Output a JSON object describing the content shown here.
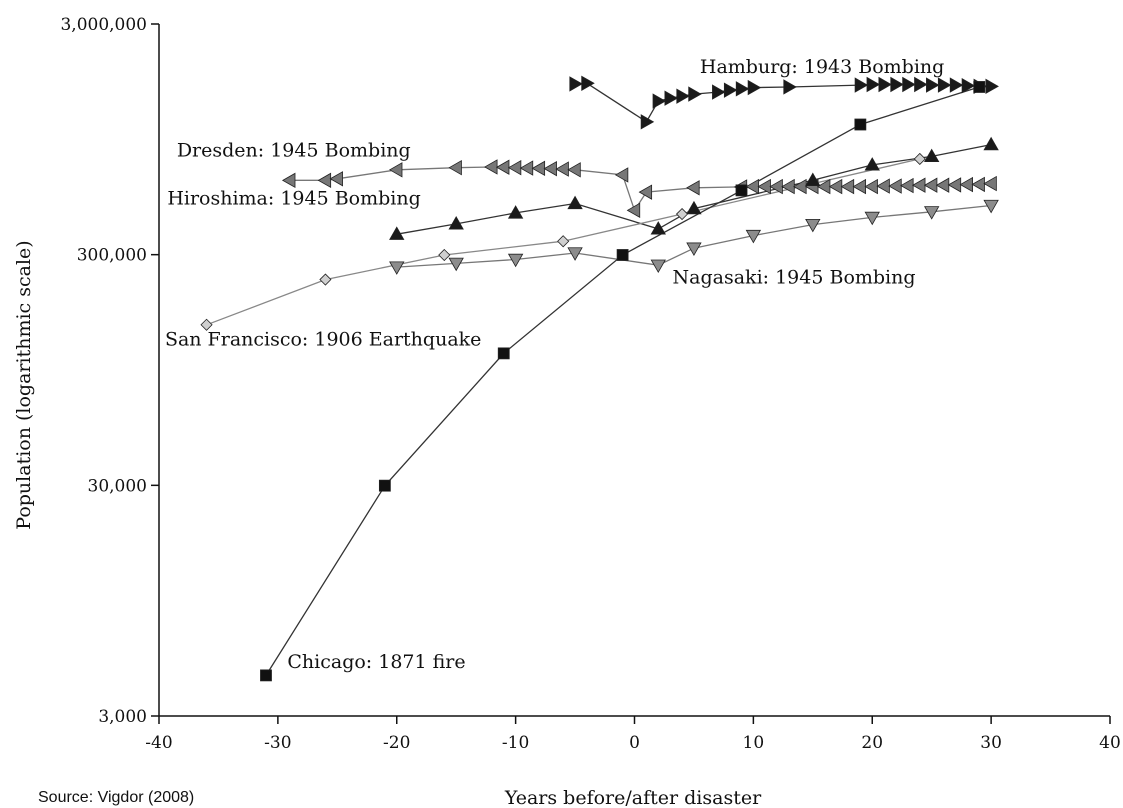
{
  "source_note": "Source: Vigdor (2008)",
  "chart_data": {
    "type": "line",
    "xlabel": "Years before/after disaster",
    "ylabel": "Population (logarithmic scale)",
    "xlim": [
      -40,
      40
    ],
    "ylim": [
      3000,
      3000000
    ],
    "yscale": "log",
    "x_ticks": [
      -40,
      -30,
      -20,
      -10,
      0,
      10,
      20,
      30,
      40
    ],
    "y_ticks": [
      {
        "value": 3000,
        "label": "3,000"
      },
      {
        "value": 30000,
        "label": "30,000"
      },
      {
        "value": 300000,
        "label": "300,000"
      },
      {
        "value": 3000000,
        "label": "3,000,000"
      }
    ],
    "grid": false,
    "series": [
      {
        "name": "Hamburg: 1943 Bombing",
        "marker": "triangle-right",
        "fill": "#1a1a1a",
        "line": "#333333",
        "points": [
          [
            -5,
            1650000
          ],
          [
            -4,
            1660000
          ],
          [
            1,
            1130000
          ],
          [
            2,
            1390000
          ],
          [
            3,
            1430000
          ],
          [
            4,
            1460000
          ],
          [
            5,
            1490000
          ],
          [
            7,
            1520000
          ],
          [
            8,
            1550000
          ],
          [
            9,
            1570000
          ],
          [
            10,
            1590000
          ],
          [
            13,
            1600000
          ],
          [
            19,
            1630000
          ],
          [
            20,
            1640000
          ],
          [
            21,
            1640000
          ],
          [
            22,
            1640000
          ],
          [
            23,
            1640000
          ],
          [
            24,
            1640000
          ],
          [
            25,
            1630000
          ],
          [
            26,
            1630000
          ],
          [
            27,
            1630000
          ],
          [
            28,
            1620000
          ],
          [
            29,
            1610000
          ],
          [
            30,
            1610000
          ]
        ]
      },
      {
        "name": "Dresden: 1945 Bombing",
        "marker": "triangle-left",
        "fill": "#777777",
        "line": "#777777",
        "points": [
          [
            -29,
            630000
          ],
          [
            -26,
            630000
          ],
          [
            -25,
            640000
          ],
          [
            -20,
            700000
          ],
          [
            -15,
            715000
          ],
          [
            -12,
            720000
          ],
          [
            -11,
            718000
          ],
          [
            -10,
            715000
          ],
          [
            -9,
            712000
          ],
          [
            -8,
            710000
          ],
          [
            -7,
            708000
          ],
          [
            -6,
            705000
          ],
          [
            -5,
            700000
          ],
          [
            -1,
            665000
          ],
          [
            0,
            467000
          ],
          [
            1,
            560000
          ],
          [
            5,
            585000
          ],
          [
            9,
            590000
          ],
          [
            10,
            592000
          ],
          [
            11,
            592000
          ],
          [
            12,
            592000
          ],
          [
            13,
            592000
          ],
          [
            14,
            592000
          ],
          [
            15,
            592000
          ],
          [
            16,
            592000
          ],
          [
            17,
            592000
          ],
          [
            18,
            592000
          ],
          [
            19,
            592000
          ],
          [
            20,
            592000
          ],
          [
            21,
            595000
          ],
          [
            22,
            595000
          ],
          [
            23,
            598000
          ],
          [
            24,
            600000
          ],
          [
            25,
            600000
          ],
          [
            26,
            600000
          ],
          [
            27,
            602000
          ],
          [
            28,
            604000
          ],
          [
            29,
            605000
          ],
          [
            30,
            610000
          ]
        ]
      },
      {
        "name": "Hiroshima: 1945 Bombing",
        "marker": "triangle-up",
        "fill": "#1a1a1a",
        "line": "#333333",
        "points": [
          [
            -20,
            368000
          ],
          [
            -15,
            408000
          ],
          [
            -10,
            455000
          ],
          [
            -5,
            500000
          ],
          [
            2,
            388000
          ],
          [
            5,
            475000
          ],
          [
            15,
            630000
          ],
          [
            20,
            735000
          ],
          [
            25,
            800000
          ],
          [
            30,
            900000
          ]
        ]
      },
      {
        "name": "Nagasaki: 1945 Bombing",
        "marker": "triangle-down",
        "fill": "#8c8c8c",
        "line": "#777777",
        "points": [
          [
            -20,
            265000
          ],
          [
            -15,
            275000
          ],
          [
            -10,
            286000
          ],
          [
            -5,
            305000
          ],
          [
            2,
            270000
          ],
          [
            5,
            320000
          ],
          [
            10,
            363000
          ],
          [
            15,
            405000
          ],
          [
            20,
            435000
          ],
          [
            25,
            460000
          ],
          [
            30,
            490000
          ]
        ]
      },
      {
        "name": "San Francisco: 1906 Earthquake",
        "marker": "diamond",
        "fill": "#cfcfcf",
        "line": "#888888",
        "points": [
          [
            -36,
            149000
          ],
          [
            -26,
            234000
          ],
          [
            -16,
            299000
          ],
          [
            -6,
            343000
          ],
          [
            4,
            450000
          ],
          [
            24,
            780000
          ]
        ]
      },
      {
        "name": "Chicago: 1871 fire",
        "marker": "square",
        "fill": "#111111",
        "line": "#333333",
        "points": [
          [
            -31,
            4500
          ],
          [
            -21,
            29900
          ],
          [
            -11,
            112000
          ],
          [
            -1,
            299000
          ],
          [
            9,
            570000
          ],
          [
            19,
            1100000
          ],
          [
            29,
            1600000
          ]
        ]
      }
    ],
    "labels": [
      {
        "text": "Hamburg: 1943 Bombing",
        "x": 5.5,
        "y": 1840000
      },
      {
        "text": "Dresden: 1945 Bombing",
        "x": -38.5,
        "y": 800000
      },
      {
        "text": "Hiroshima: 1945 Bombing",
        "x": -39.3,
        "y": 495000
      },
      {
        "text": "Nagasaki: 1945 Bombing",
        "x": 3.2,
        "y": 225000
      },
      {
        "text": "San Francisco: 1906 Earthquake",
        "x": -39.5,
        "y": 121000
      },
      {
        "text": "Chicago: 1871 fire",
        "x": -29.2,
        "y": 4850
      }
    ]
  }
}
